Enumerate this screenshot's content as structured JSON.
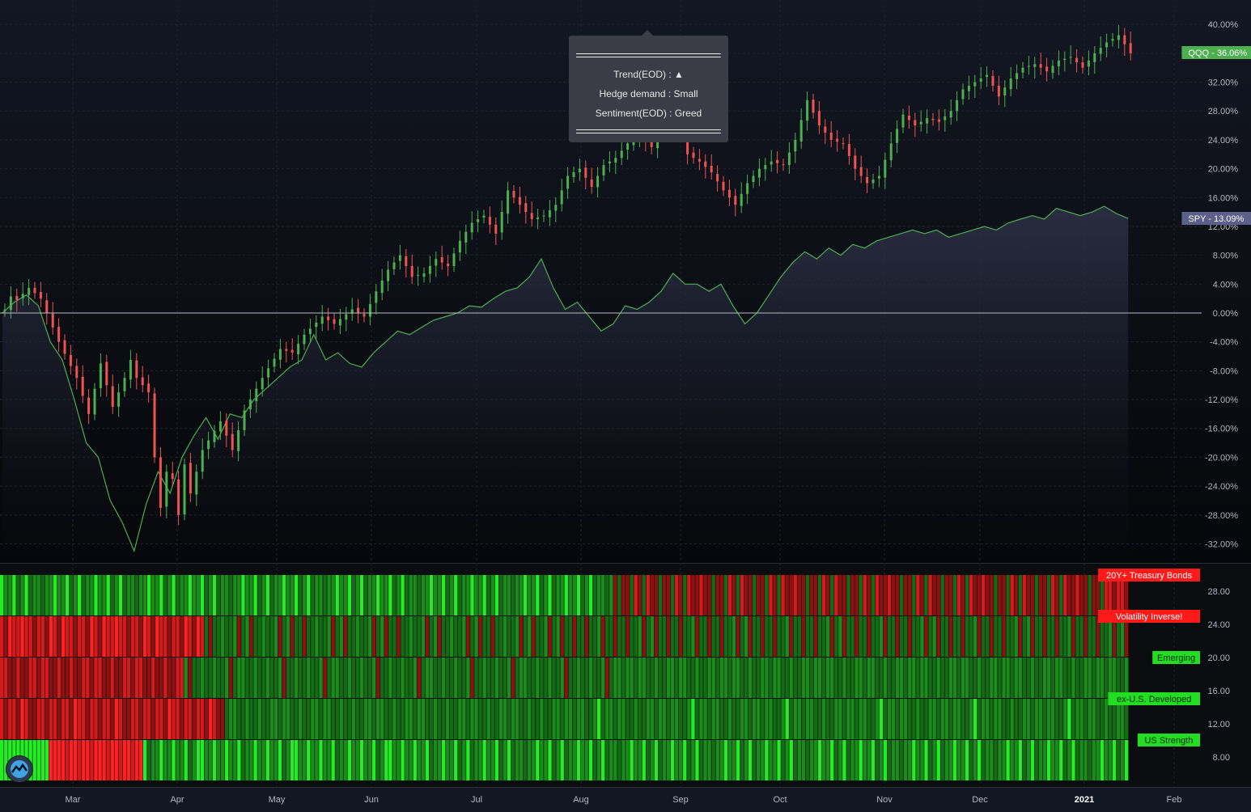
{
  "chart_data": [
    {
      "type": "candlestick",
      "series": [
        {
          "name": "QQQ",
          "label": "QQQ - 36.06%",
          "last": 36.06,
          "color": "#4caf50",
          "points": [
            [
              0,
              0.5
            ],
            [
              1,
              2.3
            ],
            [
              2,
              1.8
            ],
            [
              4,
              3.5
            ],
            [
              6,
              2.0
            ],
            [
              9,
              -4.0
            ],
            [
              12,
              -9.0
            ],
            [
              14,
              -14.0
            ],
            [
              16,
              -7.0
            ],
            [
              18,
              -13.0
            ],
            [
              20,
              -9.0
            ],
            [
              21,
              -6.5
            ],
            [
              22,
              -9.0
            ],
            [
              24,
              -11.0
            ],
            [
              25,
              -20.0
            ],
            [
              26,
              -27.0
            ],
            [
              27,
              -22.0
            ],
            [
              28,
              -23.0
            ],
            [
              29,
              -28.0
            ],
            [
              30,
              -21.0
            ],
            [
              31,
              -25.0
            ],
            [
              33,
              -19.0
            ],
            [
              36,
              -15.0
            ],
            [
              38,
              -19.0
            ],
            [
              40,
              -13.5
            ],
            [
              43,
              -9.0
            ],
            [
              46,
              -5.0
            ],
            [
              48,
              -5.5
            ],
            [
              50,
              -3.0
            ],
            [
              53,
              -0.5
            ],
            [
              55,
              -1.5
            ],
            [
              58,
              0.5
            ],
            [
              60,
              -0.5
            ],
            [
              62,
              3.0
            ],
            [
              64,
              6.0
            ],
            [
              66,
              8.0
            ],
            [
              68,
              5.0
            ],
            [
              70,
              5.5
            ],
            [
              72,
              7.5
            ],
            [
              74,
              6.5
            ],
            [
              76,
              10.0
            ],
            [
              78,
              12.5
            ],
            [
              80,
              13.5
            ],
            [
              82,
              11.0
            ],
            [
              84,
              17.0
            ],
            [
              86,
              15.0
            ],
            [
              88,
              13.0
            ],
            [
              90,
              13.5
            ],
            [
              92,
              15.0
            ],
            [
              94,
              19.0
            ],
            [
              96,
              20.0
            ],
            [
              98,
              17.5
            ],
            [
              100,
              20.5
            ],
            [
              102,
              21.5
            ],
            [
              104,
              23.5
            ],
            [
              106,
              25.0
            ],
            [
              108,
              23.0
            ],
            [
              110,
              26.5
            ],
            [
              112,
              29.0
            ],
            [
              114,
              22.0
            ],
            [
              116,
              21.0
            ],
            [
              118,
              19.5
            ],
            [
              120,
              17.0
            ],
            [
              122,
              15.0
            ],
            [
              124,
              18.0
            ],
            [
              126,
              20.0
            ],
            [
              128,
              21.0
            ],
            [
              130,
              20.5
            ],
            [
              132,
              24.0
            ],
            [
              134,
              29.5
            ],
            [
              136,
              26.0
            ],
            [
              138,
              24.0
            ],
            [
              140,
              23.5
            ],
            [
              142,
              20.0
            ],
            [
              144,
              18.0
            ],
            [
              146,
              19.0
            ],
            [
              148,
              23.5
            ],
            [
              150,
              27.5
            ],
            [
              152,
              26.0
            ],
            [
              154,
              27.0
            ],
            [
              156,
              26.5
            ],
            [
              158,
              28.0
            ],
            [
              160,
              31.0
            ],
            [
              162,
              32.0
            ],
            [
              164,
              33.0
            ],
            [
              166,
              30.0
            ],
            [
              168,
              32.5
            ],
            [
              170,
              34.0
            ],
            [
              172,
              34.5
            ],
            [
              174,
              33.5
            ],
            [
              176,
              35.0
            ],
            [
              178,
              35.5
            ],
            [
              180,
              34.0
            ],
            [
              182,
              36.0
            ],
            [
              184,
              37.5
            ],
            [
              186,
              38.5
            ],
            [
              188,
              36.0
            ]
          ]
        },
        {
          "name": "SPY",
          "label": "SPY - 13.09%",
          "last": 13.09,
          "color": "#4caf50",
          "fill": "#2a2e3e",
          "points": [
            [
              0,
              0.0
            ],
            [
              2,
              1.5
            ],
            [
              4,
              2.5
            ],
            [
              6,
              1.0
            ],
            [
              8,
              -4.0
            ],
            [
              10,
              -6.5
            ],
            [
              12,
              -12.0
            ],
            [
              14,
              -18.0
            ],
            [
              16,
              -20.0
            ],
            [
              18,
              -26.0
            ],
            [
              20,
              -29.0
            ],
            [
              22,
              -33.0
            ],
            [
              24,
              -26.5
            ],
            [
              26,
              -22.0
            ],
            [
              28,
              -25.0
            ],
            [
              30,
              -20.0
            ],
            [
              32,
              -17.0
            ],
            [
              34,
              -14.5
            ],
            [
              36,
              -17.5
            ],
            [
              38,
              -14.0
            ],
            [
              40,
              -14.5
            ],
            [
              42,
              -12.0
            ],
            [
              44,
              -10.5
            ],
            [
              46,
              -9.0
            ],
            [
              48,
              -7.5
            ],
            [
              50,
              -6.5
            ],
            [
              52,
              -3.0
            ],
            [
              54,
              -6.5
            ],
            [
              56,
              -5.5
            ],
            [
              58,
              -7.0
            ],
            [
              60,
              -7.5
            ],
            [
              62,
              -5.5
            ],
            [
              64,
              -4.0
            ],
            [
              66,
              -2.5
            ],
            [
              68,
              -3.0
            ],
            [
              70,
              -2.0
            ],
            [
              72,
              -1.0
            ],
            [
              74,
              -0.5
            ],
            [
              76,
              0.0
            ],
            [
              78,
              1.0
            ],
            [
              80,
              0.8
            ],
            [
              82,
              2.0
            ],
            [
              84,
              3.0
            ],
            [
              86,
              3.5
            ],
            [
              88,
              5.0
            ],
            [
              90,
              7.5
            ],
            [
              92,
              3.5
            ],
            [
              94,
              0.5
            ],
            [
              96,
              1.5
            ],
            [
              98,
              -0.5
            ],
            [
              100,
              -2.5
            ],
            [
              102,
              -1.5
            ],
            [
              104,
              1.0
            ],
            [
              106,
              0.5
            ],
            [
              108,
              1.5
            ],
            [
              110,
              3.0
            ],
            [
              112,
              5.5
            ],
            [
              114,
              4.0
            ],
            [
              116,
              4.0
            ],
            [
              118,
              3.0
            ],
            [
              120,
              4.0
            ],
            [
              122,
              1.0
            ],
            [
              124,
              -1.5
            ],
            [
              126,
              0.0
            ],
            [
              128,
              2.5
            ],
            [
              130,
              5.0
            ],
            [
              132,
              7.0
            ],
            [
              134,
              8.5
            ],
            [
              136,
              7.5
            ],
            [
              138,
              9.0
            ],
            [
              140,
              8.0
            ],
            [
              142,
              9.5
            ],
            [
              144,
              9.0
            ],
            [
              146,
              10.0
            ],
            [
              148,
              10.5
            ],
            [
              150,
              11.0
            ],
            [
              152,
              11.5
            ],
            [
              154,
              11.0
            ],
            [
              156,
              11.5
            ],
            [
              158,
              10.5
            ],
            [
              160,
              11.0
            ],
            [
              162,
              11.5
            ],
            [
              164,
              12.0
            ],
            [
              166,
              11.5
            ],
            [
              168,
              12.5
            ],
            [
              170,
              13.0
            ],
            [
              172,
              13.5
            ],
            [
              174,
              13.0
            ],
            [
              176,
              14.5
            ],
            [
              178,
              14.0
            ],
            [
              180,
              13.5
            ],
            [
              182,
              14.0
            ],
            [
              184,
              14.8
            ],
            [
              186,
              13.8
            ],
            [
              188,
              13.09
            ]
          ]
        }
      ],
      "y_ticks": [
        "40.00%",
        "36.00%",
        "32.00%",
        "28.00%",
        "24.00%",
        "20.00%",
        "16.00%",
        "12.00%",
        "8.00%",
        "4.00%",
        "0.00%",
        "-4.00%",
        "-8.00%",
        "-12.00%",
        "-16.00%",
        "-20.00%",
        "-24.00%",
        "-28.00%",
        "-32.00%"
      ],
      "x_ticks": [
        "Mar",
        "Apr",
        "May",
        "Jun",
        "Jul",
        "Aug",
        "Sep",
        "Oct",
        "Nov",
        "Dec",
        "2021",
        "Feb"
      ],
      "ylim": [
        -34,
        42
      ],
      "zero_line": 0
    },
    {
      "type": "heatmap",
      "rows": [
        {
          "name": "20Y+ Treasury Bonds",
          "label_color": "#ff1a1a"
        },
        {
          "name": "Volatility Inverse!",
          "label_color": "#ff1a1a"
        },
        {
          "name": "Emerging",
          "label_color": "#22dd22"
        },
        {
          "name": "ex-U.S. Developed",
          "label_color": "#22dd22"
        },
        {
          "name": "US Strength",
          "label_color": "#22dd22"
        }
      ],
      "colors": {
        "bright_green": "#22ee22",
        "green": "#1a8c1a",
        "dark_green": "#136b13",
        "dark_red": "#8c1111",
        "red": "#d41a1a",
        "bright_red": "#ff2020"
      },
      "y_ticks": [
        "28.00",
        "24.00",
        "20.00",
        "16.00",
        "12.00",
        "8.00"
      ]
    }
  ],
  "tooltip": {
    "lines": [
      "Trend(EOD) : ▲",
      "Hedge demand : Small",
      "Sentiment(EOD) : Greed"
    ]
  },
  "logo": {
    "icon": "chart-logo-icon"
  }
}
